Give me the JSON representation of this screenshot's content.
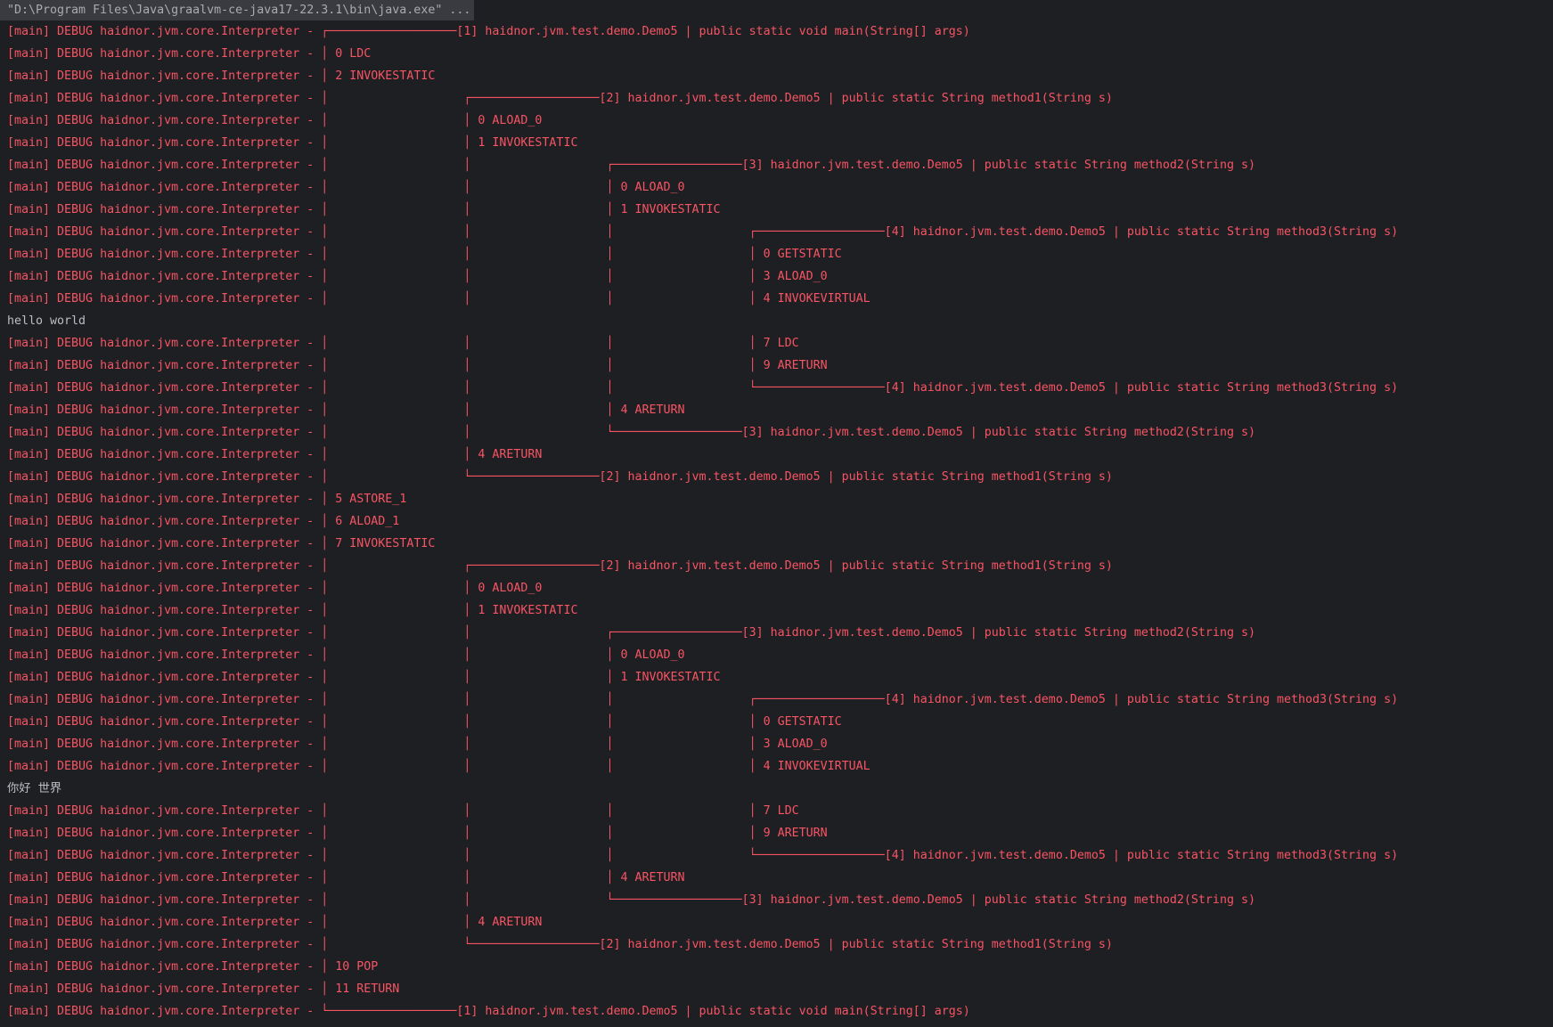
{
  "command": "\"D:\\Program Files\\Java\\graalvm-ce-java17-22.3.1\\bin\\java.exe\" ...",
  "log_prefix": "[main] DEBUG haidnor.jvm.core.Interpreter - ",
  "colors": {
    "background": "#1e1f22",
    "log": "#f75464",
    "stdout": "#bcbec4",
    "command_bg": "#393b40"
  },
  "frames": {
    "1": "[1] haidnor.jvm.test.demo.Demo5 | public static void main(String[] args)",
    "2": "[2] haidnor.jvm.test.demo.Demo5 | public static String method1(String s)",
    "3": "[3] haidnor.jvm.test.demo.Demo5 | public static String method2(String s)",
    "4": "[4] haidnor.jvm.test.demo.Demo5 | public static String method3(String s)"
  },
  "lines": [
    {
      "kind": "open",
      "depth": 1
    },
    {
      "kind": "op",
      "depth": 1,
      "text": "0 LDC"
    },
    {
      "kind": "op",
      "depth": 1,
      "text": "2 INVOKESTATIC"
    },
    {
      "kind": "open",
      "depth": 2
    },
    {
      "kind": "op",
      "depth": 2,
      "text": "0 ALOAD_0"
    },
    {
      "kind": "op",
      "depth": 2,
      "text": "1 INVOKESTATIC"
    },
    {
      "kind": "open",
      "depth": 3
    },
    {
      "kind": "op",
      "depth": 3,
      "text": "0 ALOAD_0"
    },
    {
      "kind": "op",
      "depth": 3,
      "text": "1 INVOKESTATIC"
    },
    {
      "kind": "open",
      "depth": 4
    },
    {
      "kind": "op",
      "depth": 4,
      "text": "0 GETSTATIC"
    },
    {
      "kind": "op",
      "depth": 4,
      "text": "3 ALOAD_0"
    },
    {
      "kind": "op",
      "depth": 4,
      "text": "4 INVOKEVIRTUAL"
    },
    {
      "kind": "out",
      "text": "hello world"
    },
    {
      "kind": "op",
      "depth": 4,
      "text": "7 LDC"
    },
    {
      "kind": "op",
      "depth": 4,
      "text": "9 ARETURN"
    },
    {
      "kind": "close",
      "depth": 4
    },
    {
      "kind": "op",
      "depth": 3,
      "text": "4 ARETURN"
    },
    {
      "kind": "close",
      "depth": 3
    },
    {
      "kind": "op",
      "depth": 2,
      "text": "4 ARETURN"
    },
    {
      "kind": "close",
      "depth": 2
    },
    {
      "kind": "op",
      "depth": 1,
      "text": "5 ASTORE_1"
    },
    {
      "kind": "op",
      "depth": 1,
      "text": "6 ALOAD_1"
    },
    {
      "kind": "op",
      "depth": 1,
      "text": "7 INVOKESTATIC"
    },
    {
      "kind": "open",
      "depth": 2
    },
    {
      "kind": "op",
      "depth": 2,
      "text": "0 ALOAD_0"
    },
    {
      "kind": "op",
      "depth": 2,
      "text": "1 INVOKESTATIC"
    },
    {
      "kind": "open",
      "depth": 3
    },
    {
      "kind": "op",
      "depth": 3,
      "text": "0 ALOAD_0"
    },
    {
      "kind": "op",
      "depth": 3,
      "text": "1 INVOKESTATIC"
    },
    {
      "kind": "open",
      "depth": 4
    },
    {
      "kind": "op",
      "depth": 4,
      "text": "0 GETSTATIC"
    },
    {
      "kind": "op",
      "depth": 4,
      "text": "3 ALOAD_0"
    },
    {
      "kind": "op",
      "depth": 4,
      "text": "4 INVOKEVIRTUAL"
    },
    {
      "kind": "out",
      "text": "你好 世界"
    },
    {
      "kind": "op",
      "depth": 4,
      "text": "7 LDC"
    },
    {
      "kind": "op",
      "depth": 4,
      "text": "9 ARETURN"
    },
    {
      "kind": "close",
      "depth": 4
    },
    {
      "kind": "op",
      "depth": 3,
      "text": "4 ARETURN"
    },
    {
      "kind": "close",
      "depth": 3
    },
    {
      "kind": "op",
      "depth": 2,
      "text": "4 ARETURN"
    },
    {
      "kind": "close",
      "depth": 2
    },
    {
      "kind": "op",
      "depth": 1,
      "text": "10 POP"
    },
    {
      "kind": "op",
      "depth": 1,
      "text": "11 RETURN"
    },
    {
      "kind": "close",
      "depth": 1
    }
  ]
}
